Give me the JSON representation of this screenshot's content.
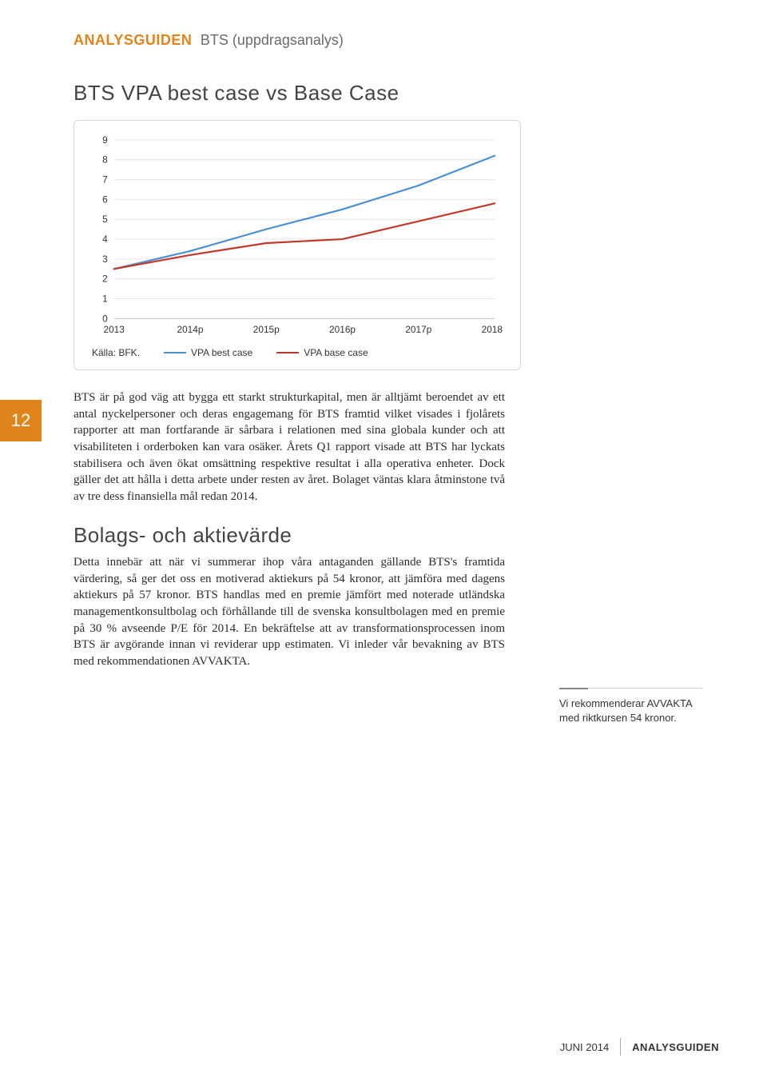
{
  "header": {
    "brand": "ANALYSGUIDEN",
    "subtitle": "BTS (uppdragsanalys)"
  },
  "page_number": "12",
  "chart": {
    "title": "BTS VPA best case vs Base Case",
    "type": "line",
    "x_labels": [
      "2013",
      "2014p",
      "2015p",
      "2016p",
      "2017p",
      "2018p"
    ],
    "y_ticks": [
      "0",
      "1",
      "2",
      "3",
      "4",
      "5",
      "6",
      "7",
      "8",
      "9"
    ],
    "ylim": [
      0,
      9
    ],
    "series": [
      {
        "name": "VPA best case",
        "color": "#4a8fd1",
        "values": [
          2.5,
          3.4,
          4.5,
          5.5,
          6.7,
          8.2
        ]
      },
      {
        "name": "VPA base case",
        "color": "#c0392b",
        "values": [
          2.5,
          3.2,
          3.8,
          4.0,
          4.9,
          5.8
        ]
      }
    ],
    "source_label": "Källa: BFK.",
    "legend": [
      {
        "label": "VPA best case",
        "color": "#4a8fd1"
      },
      {
        "label": "VPA base case",
        "color": "#c0392b"
      }
    ],
    "axis_color": "#c9c9c9",
    "grid_color": "#e6e6e6",
    "tick_fontsize": 12,
    "tick_color": "#333333",
    "line_width": 2.2
  },
  "paragraphs": {
    "p1": "BTS är på god väg att bygga ett starkt strukturkapital, men är alltjämt beroendet av ett antal nyckelpersoner och deras engagemang för BTS framtid vilket visades i fjolårets rapporter att man fortfarande är sårbara i relationen med sina globala kunder och att visabiliteten i orderboken kan vara osäker. Årets Q1 rapport visade att BTS har lyckats stabilisera och även ökat omsättning respektive resultat i alla operativa enheter. Dock gäller det att hålla i detta arbete under resten av året. Bolaget väntas klara åtminstone två av tre dess finansiella mål redan 2014.",
    "heading2": "Bolags- och aktievärde",
    "p2": "Detta innebär att när vi summerar ihop våra antaganden gällande BTS's framtida värdering, så ger det oss en motiverad aktiekurs på 54 kronor, att jämföra med dagens aktiekurs på 57 kronor. BTS handlas med en premie jämfört med noterade utländska managementkonsultbolag och förhållande till de svenska konsultbolagen med en premie på 30 % avseende P/E för 2014. En bekräftelse att av transformationsprocessen inom BTS är avgörande innan vi reviderar upp estimaten. Vi inleder vår bevakning av BTS med rekommendationen AVVAKTA."
  },
  "sidebar": {
    "note": "Vi rekommenderar AVVAKTA med riktkursen 54 kronor."
  },
  "footer": {
    "date": "JUNI 2014",
    "brand": "ANALYSGUIDEN"
  }
}
